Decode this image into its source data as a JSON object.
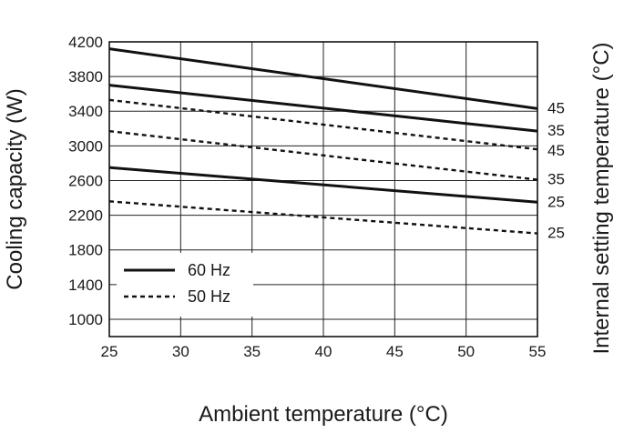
{
  "chart_data": {
    "type": "line",
    "xlabel": "Ambient temperature (°C)",
    "ylabel": "Cooling capacity (W)",
    "y2label": "Internal setting temperature (°C)",
    "x_ticks": [
      25,
      30,
      35,
      40,
      45,
      50,
      55
    ],
    "y_ticks": [
      1000,
      1400,
      1800,
      2200,
      2600,
      3000,
      3400,
      3800,
      4200
    ],
    "xlim": [
      25,
      55
    ],
    "ylim": [
      800,
      4200
    ],
    "grid": true,
    "legend": {
      "position": "lower-left",
      "entries": [
        {
          "label": "60 Hz",
          "style": "solid"
        },
        {
          "label": "50 Hz",
          "style": "dashed"
        }
      ]
    },
    "series": [
      {
        "frequency": "60 Hz",
        "style": "solid",
        "end_label": "45",
        "x": [
          25,
          55
        ],
        "y": [
          4120,
          3430
        ]
      },
      {
        "frequency": "60 Hz",
        "style": "solid",
        "end_label": "35",
        "x": [
          25,
          55
        ],
        "y": [
          3700,
          3170
        ]
      },
      {
        "frequency": "60 Hz",
        "style": "solid",
        "end_label": "25",
        "x": [
          25,
          55
        ],
        "y": [
          2750,
          2350
        ]
      },
      {
        "frequency": "50 Hz",
        "style": "dashed",
        "end_label": "45",
        "x": [
          25,
          55
        ],
        "y": [
          3530,
          2960
        ]
      },
      {
        "frequency": "50 Hz",
        "style": "dashed",
        "end_label": "35",
        "x": [
          25,
          55
        ],
        "y": [
          3170,
          2610
        ]
      },
      {
        "frequency": "50 Hz",
        "style": "dashed",
        "end_label": "25",
        "x": [
          25,
          55
        ],
        "y": [
          2360,
          1990
        ]
      }
    ],
    "end_labels_order": [
      "45",
      "35",
      "45",
      "35",
      "25",
      "25"
    ]
  }
}
